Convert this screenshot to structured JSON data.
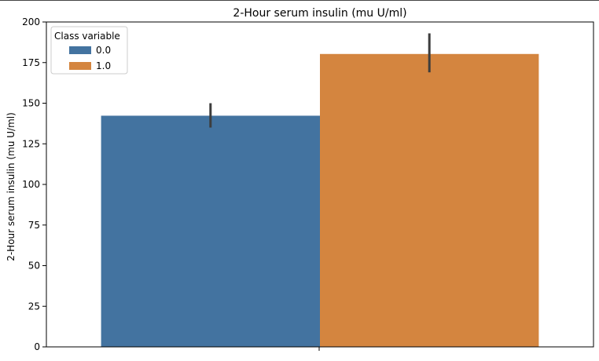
{
  "chart_data": {
    "type": "bar",
    "title": "2-Hour serum insulin (mu U/ml)",
    "xlabel": "",
    "ylabel": "2-Hour serum insulin (mu U/ml)",
    "ylim": [
      0,
      200
    ],
    "yticks": [
      "0",
      "25",
      "50",
      "75",
      "100",
      "125",
      "150",
      "175",
      "200"
    ],
    "categories": [
      ""
    ],
    "legend": {
      "title": "Class variable",
      "position": "top-left"
    },
    "grid": false,
    "series": [
      {
        "name": "0.0",
        "color": "#4373a0",
        "values": [
          142.3
        ],
        "error": [
          [
            135,
            150
          ]
        ]
      },
      {
        "name": "1.0",
        "color": "#d4853f",
        "values": [
          180.3
        ],
        "error": [
          [
            169,
            193
          ]
        ]
      }
    ]
  }
}
